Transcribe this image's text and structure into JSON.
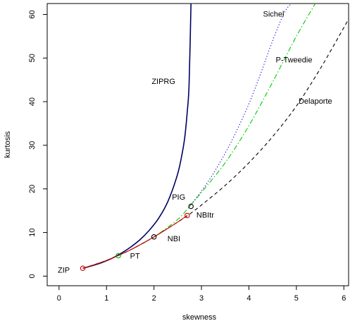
{
  "chart_data": {
    "type": "line",
    "title": "",
    "xlabel": "skewness",
    "ylabel": "kurtosis",
    "xlim": [
      -0.25,
      6.1
    ],
    "ylim": [
      -2.2,
      62.5
    ],
    "xticks": [
      0,
      1,
      2,
      3,
      4,
      5,
      6
    ],
    "yticks": [
      0,
      10,
      20,
      30,
      40,
      50,
      60
    ],
    "grid": false,
    "legend": "none",
    "series": [
      {
        "name": "ZIPRG",
        "color": "#000066",
        "style": "solid",
        "x": [
          0.5,
          0.7,
          0.9,
          1.1,
          1.3,
          1.5,
          1.7,
          1.9,
          2.1,
          2.3,
          2.5,
          2.6,
          2.65,
          2.7,
          2.74,
          2.78
        ],
        "y": [
          1.8,
          2.4,
          3.1,
          4.0,
          5.2,
          6.6,
          8.3,
          10.5,
          13.3,
          17.3,
          23.5,
          28.5,
          32.0,
          37.5,
          44.0,
          62.5
        ]
      },
      {
        "name": "Sichel",
        "color": "#0000cc",
        "style": "dotted",
        "x": [
          2.75,
          3.0,
          3.25,
          3.5,
          3.75,
          4.0,
          4.25,
          4.5,
          4.75,
          4.9
        ],
        "y": [
          16.0,
          19.5,
          23.5,
          28.2,
          33.5,
          39.5,
          46.5,
          54.0,
          60.5,
          62.5
        ]
      },
      {
        "name": "P-Tweedie",
        "color": "#00cc00",
        "style": "dotdash",
        "x": [
          0.5,
          1.0,
          1.5,
          2.0,
          2.5,
          2.75,
          3.0,
          3.5,
          4.0,
          4.5,
          5.0,
          5.4
        ],
        "y": [
          1.8,
          3.6,
          6.0,
          9.0,
          13.0,
          16.0,
          19.2,
          26.0,
          34.5,
          44.5,
          55.0,
          62.5
        ]
      },
      {
        "name": "Delaporte",
        "color": "#000000",
        "style": "dashed",
        "x": [
          0.5,
          1.0,
          1.5,
          2.0,
          2.5,
          2.75,
          3.0,
          3.5,
          4.0,
          4.5,
          5.0,
          5.5,
          6.0,
          6.1
        ],
        "y": [
          1.8,
          3.6,
          6.0,
          9.0,
          12.4,
          14.2,
          16.3,
          20.8,
          26.0,
          32.0,
          39.0,
          47.5,
          57.0,
          59.0
        ]
      },
      {
        "name": "NBItr",
        "color": "#cc0000",
        "style": "solid",
        "x": [
          0.5,
          1.0,
          1.5,
          2.0,
          2.3,
          2.5,
          2.7
        ],
        "y": [
          1.8,
          3.6,
          6.0,
          9.0,
          11.0,
          12.4,
          13.9
        ]
      }
    ],
    "points": [
      {
        "name": "ZIP",
        "x": 0.5,
        "y": 1.8,
        "color": "#cc0000"
      },
      {
        "name": "PT",
        "x": 1.25,
        "y": 4.7,
        "color": "#00aa00"
      },
      {
        "name": "NBI",
        "x": 2.0,
        "y": 9.0,
        "color": "#000000"
      },
      {
        "name": "NBItr",
        "x": 2.7,
        "y": 13.9,
        "color": "#cc0000"
      },
      {
        "name": "PIG",
        "x": 2.78,
        "y": 16.0,
        "color": "#000000"
      }
    ],
    "labels": [
      {
        "text": "ZIPRG",
        "x": 2.2,
        "y": 44.5
      },
      {
        "text": "Sichel",
        "x": 4.52,
        "y": 60.0
      },
      {
        "text": "P-Tweedie",
        "x": 4.95,
        "y": 49.5
      },
      {
        "text": "Delaporte",
        "x": 5.4,
        "y": 40.0
      },
      {
        "text": "PIG",
        "x": 2.52,
        "y": 18.0
      },
      {
        "text": "NBItr",
        "x": 3.08,
        "y": 13.9
      },
      {
        "text": "NBI",
        "x": 2.42,
        "y": 8.5
      },
      {
        "text": "PT",
        "x": 1.6,
        "y": 4.5
      },
      {
        "text": "ZIP",
        "x": 0.1,
        "y": 1.3
      }
    ]
  }
}
